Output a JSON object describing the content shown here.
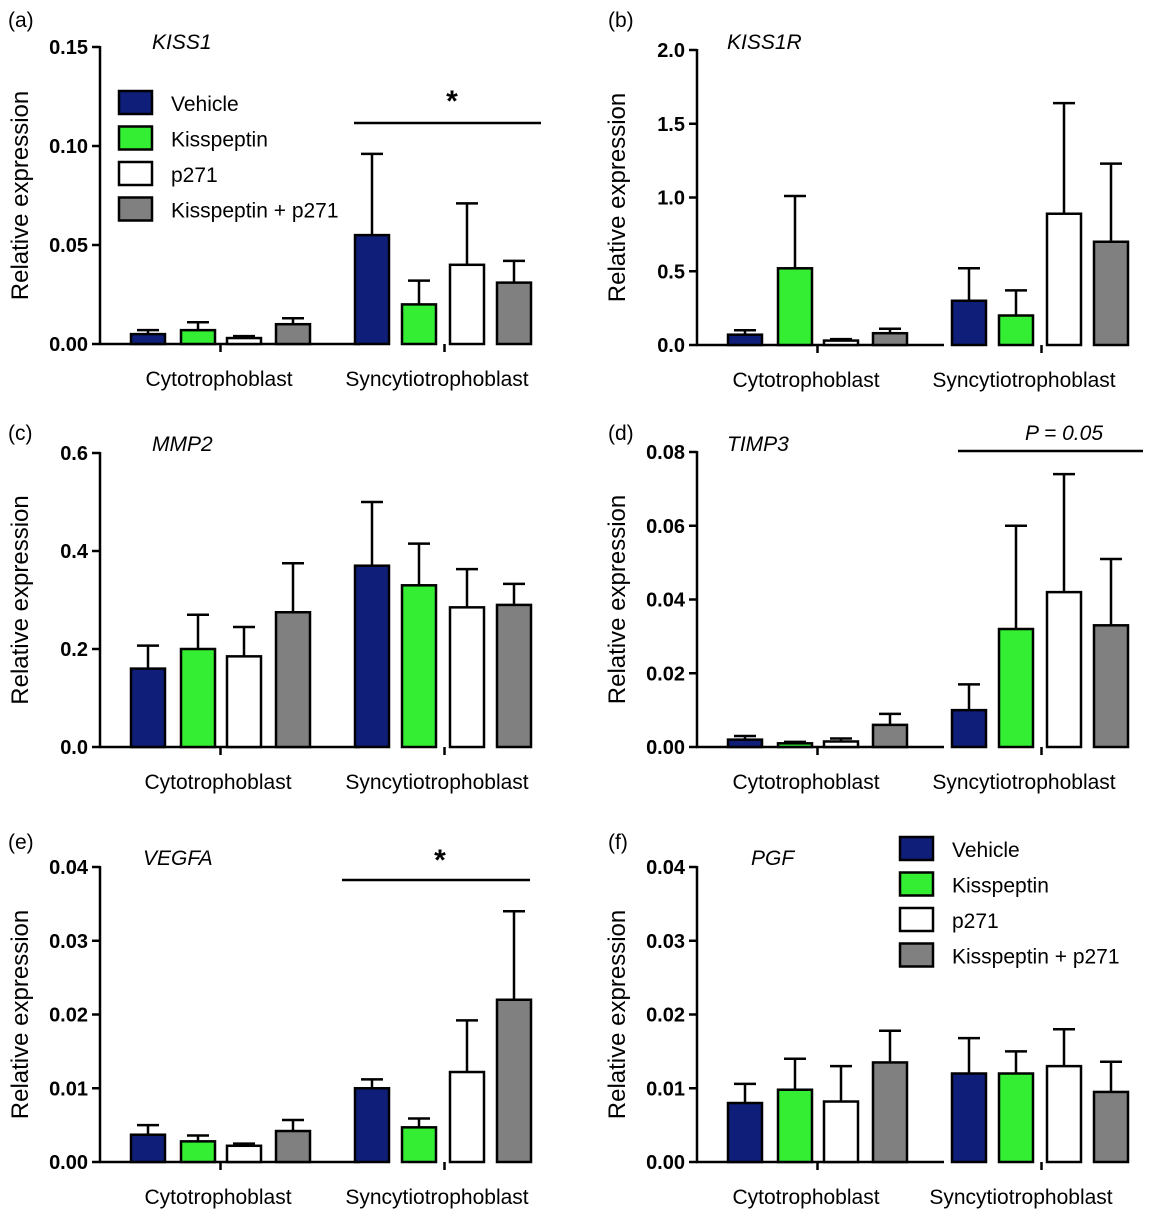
{
  "legend_items": [
    "Vehicle",
    "Kisspeptin",
    "p271",
    "Kisspeptin + p271"
  ],
  "colors": {
    "Vehicle": "#0f1e78",
    "Kisspeptin": "#33ee33",
    "p271": "#ffffff",
    "Kisspeptin + p271": "#808080"
  },
  "chart_data": [
    {
      "type": "bar",
      "panel_label": "(a)",
      "title": "KISS1",
      "ylabel": "Relative expression",
      "ylim": [
        0,
        0.15
      ],
      "yticks": [
        "0.00",
        "0.05",
        "0.10",
        "0.15"
      ],
      "categories": [
        "Cytotrophoblast",
        "Syncytiotrophoblast"
      ],
      "series": [
        {
          "name": "Vehicle",
          "values": [
            0.005,
            0.055
          ],
          "errors": [
            0.002,
            0.041
          ]
        },
        {
          "name": "Kisspeptin",
          "values": [
            0.007,
            0.02
          ],
          "errors": [
            0.004,
            0.012
          ]
        },
        {
          "name": "p271",
          "values": [
            0.003,
            0.04
          ],
          "errors": [
            0.001,
            0.031
          ]
        },
        {
          "name": "Kisspeptin + p271",
          "values": [
            0.01,
            0.031
          ],
          "errors": [
            0.003,
            0.011
          ]
        }
      ],
      "annotation": "*",
      "legend": "top-left"
    },
    {
      "type": "bar",
      "panel_label": "(b)",
      "title": "KISS1R",
      "ylabel": "Relative expression",
      "ylim": [
        0,
        2.0
      ],
      "yticks": [
        "0.0",
        "0.5",
        "1.0",
        "1.5",
        "2.0"
      ],
      "categories": [
        "Cytotrophoblast",
        "Syncytiotrophoblast"
      ],
      "series": [
        {
          "name": "Vehicle",
          "values": [
            0.07,
            0.3
          ],
          "errors": [
            0.03,
            0.22
          ]
        },
        {
          "name": "Kisspeptin",
          "values": [
            0.52,
            0.2
          ],
          "errors": [
            0.49,
            0.17
          ]
        },
        {
          "name": "p271",
          "values": [
            0.03,
            0.89
          ],
          "errors": [
            0.01,
            0.75
          ]
        },
        {
          "name": "Kisspeptin + p271",
          "values": [
            0.08,
            0.7
          ],
          "errors": [
            0.03,
            0.53
          ]
        }
      ]
    },
    {
      "type": "bar",
      "panel_label": "(c)",
      "title": "MMP2",
      "ylabel": "Relative expression",
      "ylim": [
        0,
        0.6
      ],
      "yticks": [
        "0.0",
        "0.2",
        "0.4",
        "0.6"
      ],
      "categories": [
        "Cytotrophoblast",
        "Syncytiotrophoblast"
      ],
      "series": [
        {
          "name": "Vehicle",
          "values": [
            0.16,
            0.37
          ],
          "errors": [
            0.047,
            0.13
          ]
        },
        {
          "name": "Kisspeptin",
          "values": [
            0.2,
            0.33
          ],
          "errors": [
            0.07,
            0.085
          ]
        },
        {
          "name": "p271",
          "values": [
            0.185,
            0.285
          ],
          "errors": [
            0.06,
            0.078
          ]
        },
        {
          "name": "Kisspeptin + p271",
          "values": [
            0.275,
            0.29
          ],
          "errors": [
            0.1,
            0.043
          ]
        }
      ]
    },
    {
      "type": "bar",
      "panel_label": "(d)",
      "title": "TIMP3",
      "ylabel": "Relative expression",
      "ylim": [
        0,
        0.08
      ],
      "yticks": [
        "0.00",
        "0.02",
        "0.04",
        "0.06",
        "0.08"
      ],
      "categories": [
        "Cytotrophoblast",
        "Syncytiotrophoblast"
      ],
      "series": [
        {
          "name": "Vehicle",
          "values": [
            0.002,
            0.01
          ],
          "errors": [
            0.001,
            0.007
          ]
        },
        {
          "name": "Kisspeptin",
          "values": [
            0.001,
            0.032
          ],
          "errors": [
            0.0004,
            0.028
          ]
        },
        {
          "name": "p271",
          "values": [
            0.0015,
            0.042
          ],
          "errors": [
            0.0008,
            0.032
          ]
        },
        {
          "name": "Kisspeptin + p271",
          "values": [
            0.006,
            0.033
          ],
          "errors": [
            0.003,
            0.018
          ]
        }
      ],
      "annotation": "P = 0.05"
    },
    {
      "type": "bar",
      "panel_label": "(e)",
      "title": "VEGFA",
      "ylabel": "Relative expression",
      "ylim": [
        0,
        0.04
      ],
      "yticks": [
        "0.00",
        "0.01",
        "0.02",
        "0.03",
        "0.04"
      ],
      "categories": [
        "Cytotrophoblast",
        "Syncytiotrophoblast"
      ],
      "series": [
        {
          "name": "Vehicle",
          "values": [
            0.0037,
            0.01
          ],
          "errors": [
            0.0013,
            0.0012
          ]
        },
        {
          "name": "Kisspeptin",
          "values": [
            0.0028,
            0.0047
          ],
          "errors": [
            0.0008,
            0.0012
          ]
        },
        {
          "name": "p271",
          "values": [
            0.0022,
            0.0122
          ],
          "errors": [
            0.0003,
            0.007
          ]
        },
        {
          "name": "Kisspeptin + p271",
          "values": [
            0.0042,
            0.022
          ],
          "errors": [
            0.0015,
            0.012
          ]
        }
      ],
      "annotation": "*"
    },
    {
      "type": "bar",
      "panel_label": "(f)",
      "title": "PGF",
      "ylabel": "Relative expression",
      "ylim": [
        0,
        0.04
      ],
      "yticks": [
        "0.00",
        "0.01",
        "0.02",
        "0.03",
        "0.04"
      ],
      "categories": [
        "Cytotrophoblast",
        "Syncytiotrophoblast"
      ],
      "series": [
        {
          "name": "Vehicle",
          "values": [
            0.008,
            0.012
          ],
          "errors": [
            0.0026,
            0.0048
          ]
        },
        {
          "name": "Kisspeptin",
          "values": [
            0.0098,
            0.012
          ],
          "errors": [
            0.0042,
            0.003
          ]
        },
        {
          "name": "p271",
          "values": [
            0.0082,
            0.013
          ],
          "errors": [
            0.0048,
            0.005
          ]
        },
        {
          "name": "Kisspeptin + p271",
          "values": [
            0.0135,
            0.0095
          ],
          "errors": [
            0.0043,
            0.0041
          ]
        }
      ],
      "legend": "top-right"
    }
  ]
}
